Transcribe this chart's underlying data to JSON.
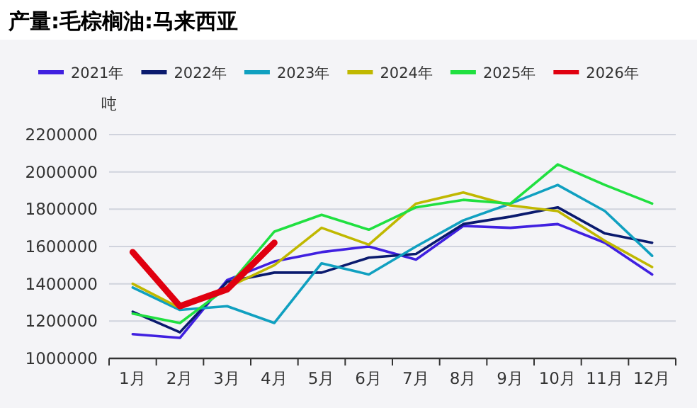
{
  "chart_data": {
    "type": "line",
    "title": "产量:毛棕榈油:马来西亚",
    "ylabel": "吨",
    "categories": [
      "1月",
      "2月",
      "3月",
      "4月",
      "5月",
      "6月",
      "7月",
      "8月",
      "9月",
      "10月",
      "11月",
      "12月"
    ],
    "ylim": [
      1000000,
      2200000
    ],
    "yticks": [
      1000000,
      1200000,
      1400000,
      1600000,
      1800000,
      2000000,
      2200000
    ],
    "grid": "y",
    "legend": "top",
    "marker": "none",
    "series": [
      {
        "name": "2021年",
        "color": "#4020e0",
        "values": [
          1130000,
          1110000,
          1420000,
          1520000,
          1570000,
          1600000,
          1530000,
          1710000,
          1700000,
          1720000,
          1620000,
          1450000
        ]
      },
      {
        "name": "2022年",
        "color": "#0a1a6e",
        "values": [
          1250000,
          1140000,
          1410000,
          1460000,
          1460000,
          1540000,
          1560000,
          1720000,
          1760000,
          1810000,
          1670000,
          1620000
        ]
      },
      {
        "name": "2023年",
        "color": "#10a0c0",
        "values": [
          1380000,
          1260000,
          1280000,
          1190000,
          1510000,
          1450000,
          1600000,
          1740000,
          1830000,
          1930000,
          1790000,
          1550000
        ]
      },
      {
        "name": "2024年",
        "color": "#c0b800",
        "values": [
          1400000,
          1270000,
          1380000,
          1500000,
          1700000,
          1610000,
          1830000,
          1890000,
          1820000,
          1790000,
          1630000,
          1490000
        ]
      },
      {
        "name": "2025年",
        "color": "#20e040",
        "values": [
          1240000,
          1190000,
          1380000,
          1680000,
          1770000,
          1690000,
          1810000,
          1850000,
          1830000,
          2040000,
          1930000,
          1830000
        ]
      },
      {
        "name": "2026年",
        "color": "#e00010",
        "values": [
          1570000,
          1280000,
          1370000,
          1620000,
          null,
          null,
          null,
          null,
          null,
          null,
          null,
          null
        ]
      }
    ]
  }
}
